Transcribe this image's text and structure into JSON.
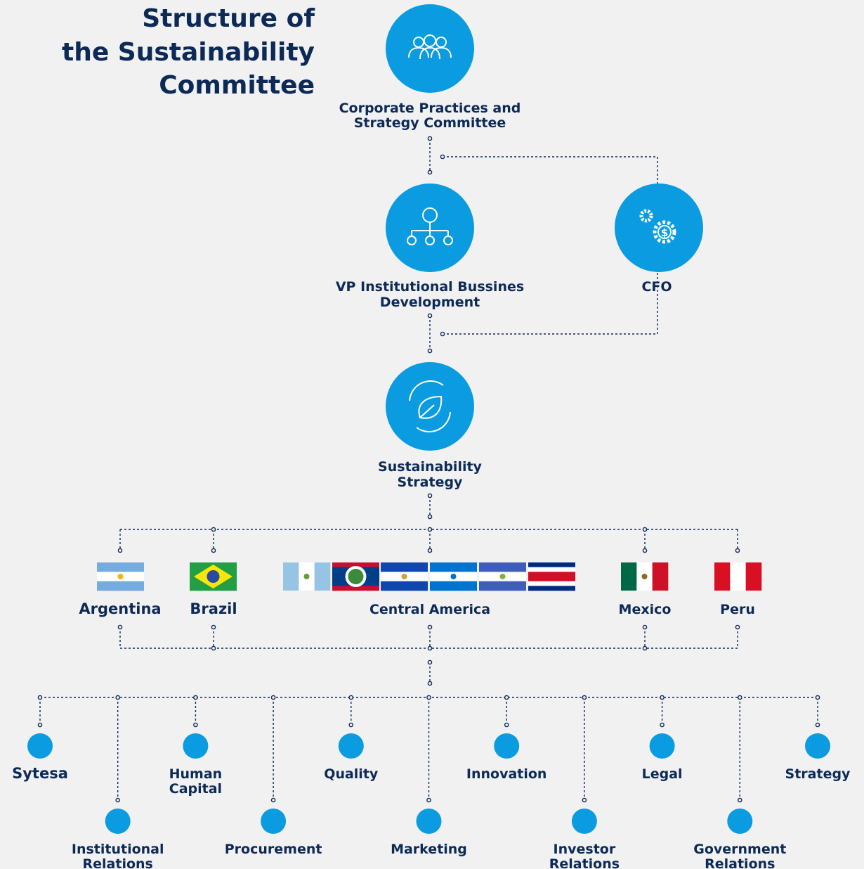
{
  "title": [
    "Structure of",
    "the Sustainability",
    "Committee"
  ],
  "levels": [
    {
      "label": [
        "Corporate Practices and",
        "Strategy Committee"
      ]
    },
    {
      "label": [
        "VP Institutional Bussines",
        "Development"
      ]
    },
    {
      "label": [
        "CFO"
      ]
    },
    {
      "label": [
        "Sustainability",
        "Strategy"
      ]
    }
  ],
  "regions": [
    "Argentina",
    "Brazil",
    "Central America",
    "Mexico",
    "Peru"
  ],
  "departments": [
    [
      "Sytesa"
    ],
    [
      "Institutional",
      "Relations"
    ],
    [
      "Human",
      "Capital"
    ],
    [
      "Procurement"
    ],
    [
      "Quality"
    ],
    [
      "Marketing"
    ],
    [
      "Innovation"
    ],
    [
      "Investor",
      "Relations"
    ],
    [
      "Legal"
    ],
    [
      "Government",
      "Relations"
    ],
    [
      "Strategy"
    ]
  ]
}
